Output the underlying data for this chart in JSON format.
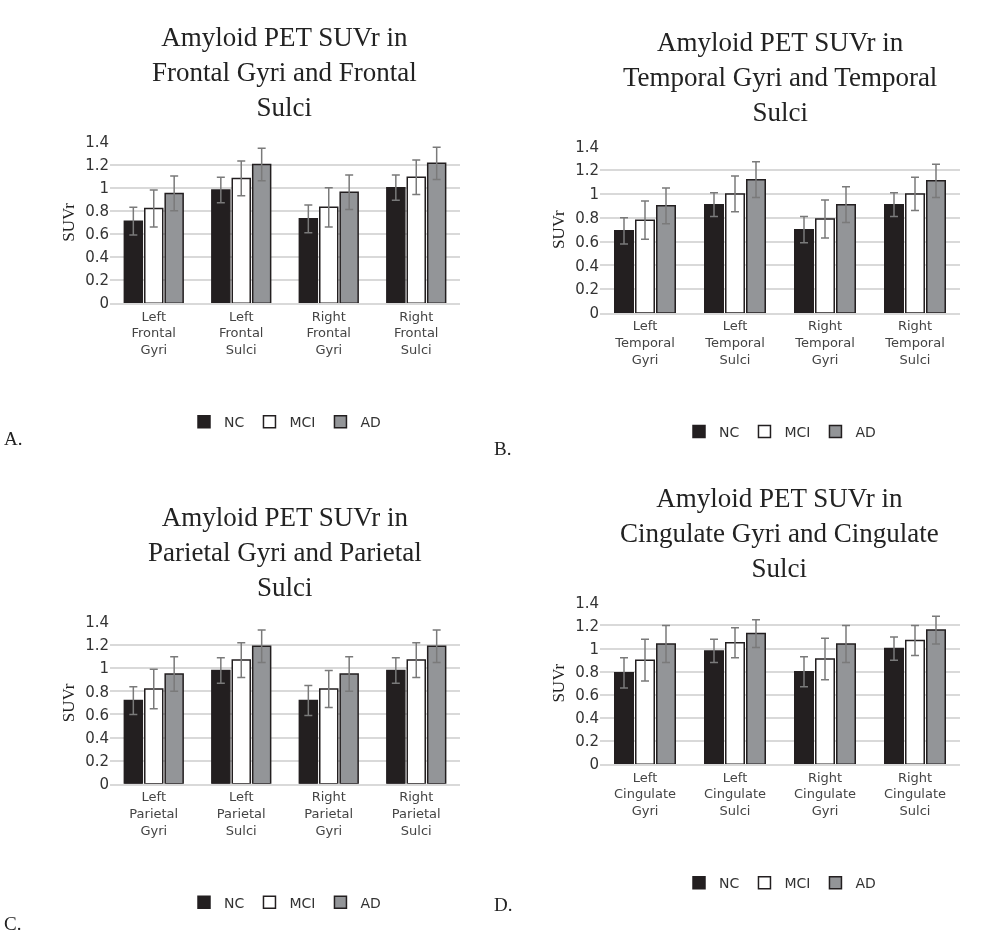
{
  "chart_data": [
    {
      "type": "bar",
      "title": "Amyloid PET SUVr in\nFrontal Gyri and Frontal\nSulci",
      "ylabel": "SUVr",
      "categories": [
        "Left Frontal Gyri",
        "Left Frontal Sulci",
        "Right Frontal Gyri",
        "Right Frontal Sulci"
      ],
      "series": [
        {
          "name": "NC",
          "color": "#231f20",
          "values": [
            0.71,
            0.98,
            0.73,
            1.0
          ],
          "errors": [
            0.12,
            0.11,
            0.12,
            0.11
          ]
        },
        {
          "name": "MCI",
          "color": "#ffffff",
          "values": [
            0.82,
            1.08,
            0.83,
            1.09
          ],
          "errors": [
            0.16,
            0.15,
            0.17,
            0.15
          ]
        },
        {
          "name": "AD",
          "color": "#939598",
          "values": [
            0.95,
            1.2,
            0.96,
            1.21
          ],
          "errors": [
            0.15,
            0.14,
            0.15,
            0.14
          ]
        }
      ],
      "ylim": [
        0,
        1.4
      ],
      "yticks": [
        0,
        0.2,
        0.4,
        0.6,
        0.8,
        1,
        1.2,
        1.4
      ],
      "grid": "y",
      "legend": "bottom",
      "annotations": [
        "A."
      ]
    },
    {
      "type": "bar",
      "title": "Amyloid PET SUVr in\nTemporal Gyri and Temporal\nSulci",
      "ylabel": "SUVr",
      "categories": [
        "Left Temporal Gyri",
        "Left Temporal Sulci",
        "Right Temporal Gyri",
        "Right Temporal Sulci"
      ],
      "series": [
        {
          "name": "NC",
          "color": "#231f20",
          "values": [
            0.69,
            0.91,
            0.7,
            0.91
          ],
          "errors": [
            0.11,
            0.1,
            0.11,
            0.1
          ]
        },
        {
          "name": "MCI",
          "color": "#ffffff",
          "values": [
            0.78,
            1.0,
            0.79,
            1.0
          ],
          "errors": [
            0.16,
            0.15,
            0.16,
            0.14
          ]
        },
        {
          "name": "AD",
          "color": "#939598",
          "values": [
            0.9,
            1.12,
            0.91,
            1.11
          ],
          "errors": [
            0.15,
            0.15,
            0.15,
            0.14
          ]
        }
      ],
      "ylim": [
        0,
        1.4
      ],
      "yticks": [
        0,
        0.2,
        0.4,
        0.6,
        0.8,
        1,
        1.2,
        1.4
      ],
      "grid": "y",
      "legend": "bottom",
      "annotations": [
        "B."
      ]
    },
    {
      "type": "bar",
      "title": "Amyloid PET SUVr in\nParietal Gyri and Parietal\nSulci",
      "ylabel": "SUVr",
      "categories": [
        "Left Parietal Gyri",
        "Left Parietal Sulci",
        "Right Parietal Gyri",
        "Right Parietal Sulci"
      ],
      "series": [
        {
          "name": "NC",
          "color": "#231f20",
          "values": [
            0.72,
            0.98,
            0.72,
            0.98
          ],
          "errors": [
            0.12,
            0.11,
            0.13,
            0.11
          ]
        },
        {
          "name": "MCI",
          "color": "#ffffff",
          "values": [
            0.82,
            1.07,
            0.82,
            1.07
          ],
          "errors": [
            0.17,
            0.15,
            0.16,
            0.15
          ]
        },
        {
          "name": "AD",
          "color": "#939598",
          "values": [
            0.95,
            1.19,
            0.95,
            1.19
          ],
          "errors": [
            0.15,
            0.14,
            0.15,
            0.14
          ]
        }
      ],
      "ylim": [
        0,
        1.4
      ],
      "yticks": [
        0,
        0.2,
        0.4,
        0.6,
        0.8,
        1,
        1.2,
        1.4
      ],
      "grid": "y",
      "legend": "bottom",
      "annotations": [
        "C."
      ]
    },
    {
      "type": "bar",
      "title": "Amyloid PET SUVr in\nCingulate Gyri and Cingulate\nSulci",
      "ylabel": "SUVr",
      "categories": [
        "Left Cingulate Gyri",
        "Left Cingulate Sulci",
        "Right Cingulate Gyri",
        "Right Cingulate Sulci"
      ],
      "series": [
        {
          "name": "NC",
          "color": "#231f20",
          "values": [
            0.79,
            0.98,
            0.8,
            1.0
          ],
          "errors": [
            0.13,
            0.1,
            0.13,
            0.1
          ]
        },
        {
          "name": "MCI",
          "color": "#ffffff",
          "values": [
            0.9,
            1.05,
            0.91,
            1.07
          ],
          "errors": [
            0.18,
            0.13,
            0.18,
            0.13
          ]
        },
        {
          "name": "AD",
          "color": "#939598",
          "values": [
            1.04,
            1.13,
            1.04,
            1.16
          ],
          "errors": [
            0.16,
            0.12,
            0.16,
            0.12
          ]
        }
      ],
      "ylim": [
        0,
        1.4
      ],
      "yticks": [
        0,
        0.2,
        0.4,
        0.6,
        0.8,
        1,
        1.2,
        1.4
      ],
      "grid": "y",
      "legend": "bottom",
      "annotations": [
        "D."
      ]
    }
  ]
}
